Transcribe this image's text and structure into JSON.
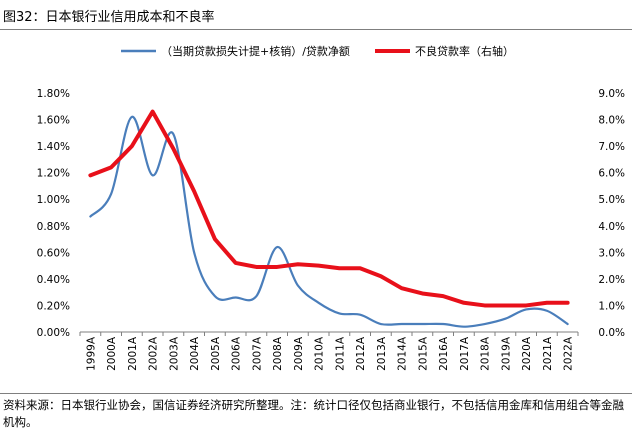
{
  "figure": {
    "title": "图32：日本银行业信用成本和不良率",
    "source": "资料来源：日本银行业协会，国信证券经济研究所整理。注：统计口径仅包括商业银行，不包括信用金库和信用组合等金融机构。"
  },
  "chart_data": {
    "type": "line",
    "categories": [
      "1999A",
      "2000A",
      "2001A",
      "2002A",
      "2003A",
      "2004A",
      "2005A",
      "2006A",
      "2007A",
      "2008A",
      "2009A",
      "2010A",
      "2011A",
      "2012A",
      "2013A",
      "2014A",
      "2015A",
      "2016A",
      "2017A",
      "2018A",
      "2019A",
      "2020A",
      "2021A",
      "2022A"
    ],
    "series": [
      {
        "name": "（当期贷款损失计提+核销）/贷款净额",
        "axis": "left",
        "color": "#4a7ebb",
        "smooth": true,
        "values": [
          0.87,
          1.04,
          1.62,
          1.18,
          1.49,
          0.6,
          0.27,
          0.26,
          0.27,
          0.64,
          0.35,
          0.22,
          0.14,
          0.13,
          0.06,
          0.06,
          0.06,
          0.06,
          0.04,
          0.06,
          0.1,
          0.17,
          0.16,
          0.06
        ]
      },
      {
        "name": "不良贷款率（右轴）",
        "axis": "right",
        "color": "#e8101a",
        "smooth": false,
        "values": [
          5.9,
          6.2,
          7.0,
          8.3,
          6.9,
          5.3,
          3.5,
          2.6,
          2.45,
          2.45,
          2.55,
          2.5,
          2.4,
          2.4,
          2.1,
          1.65,
          1.45,
          1.35,
          1.1,
          1.0,
          1.0,
          1.0,
          1.1,
          1.1
        ]
      }
    ],
    "y_left": {
      "ylim": [
        0,
        1.8
      ],
      "ticks": [
        0,
        0.2,
        0.4,
        0.6,
        0.8,
        1.0,
        1.2,
        1.4,
        1.6,
        1.8
      ],
      "tick_labels": [
        "0.00%",
        "0.20%",
        "0.40%",
        "0.60%",
        "0.80%",
        "1.00%",
        "1.20%",
        "1.40%",
        "1.60%",
        "1.80%"
      ]
    },
    "y_right": {
      "ylim": [
        0,
        9
      ],
      "ticks": [
        0,
        1,
        2,
        3,
        4,
        5,
        6,
        7,
        8,
        9
      ],
      "tick_labels": [
        "0.0%",
        "1.0%",
        "2.0%",
        "3.0%",
        "4.0%",
        "5.0%",
        "6.0%",
        "7.0%",
        "8.0%",
        "9.0%"
      ]
    },
    "grid": false,
    "legend_position": "top"
  }
}
